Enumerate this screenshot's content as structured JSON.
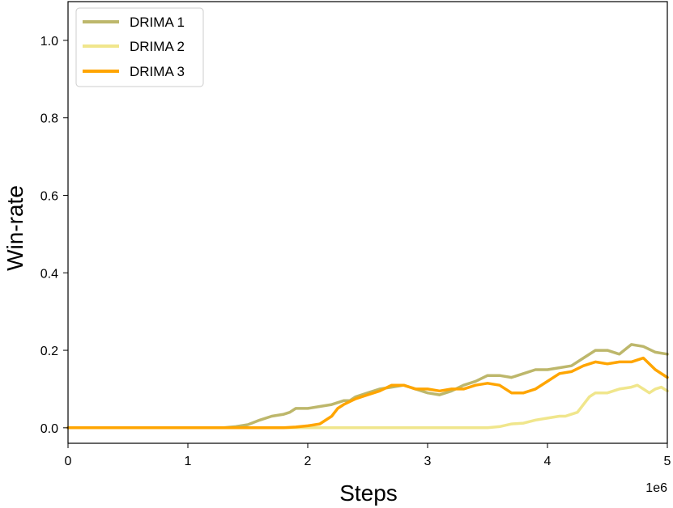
{
  "chart_data": {
    "type": "line",
    "xlabel": "Steps",
    "ylabel": "Win-rate",
    "x_offset_label": "1e6",
    "xlim": [
      0,
      5
    ],
    "ylim": [
      -0.04,
      1.1
    ],
    "x_ticks": [
      "0",
      "1",
      "2",
      "3",
      "4",
      "5"
    ],
    "y_ticks": [
      "0.0",
      "0.2",
      "0.4",
      "0.6",
      "0.8",
      "1.0"
    ],
    "grid": false,
    "legend_position": "top-left",
    "series": [
      {
        "name": "DRIMA 1",
        "color": "#bdb76b",
        "points": [
          [
            0,
            0
          ],
          [
            0.5,
            0
          ],
          [
            1.0,
            0
          ],
          [
            1.3,
            0
          ],
          [
            1.4,
            0.003
          ],
          [
            1.5,
            0.008
          ],
          [
            1.6,
            0.02
          ],
          [
            1.7,
            0.03
          ],
          [
            1.8,
            0.035
          ],
          [
            1.85,
            0.04
          ],
          [
            1.9,
            0.05
          ],
          [
            2.0,
            0.05
          ],
          [
            2.1,
            0.055
          ],
          [
            2.2,
            0.06
          ],
          [
            2.3,
            0.07
          ],
          [
            2.35,
            0.07
          ],
          [
            2.4,
            0.08
          ],
          [
            2.5,
            0.09
          ],
          [
            2.6,
            0.1
          ],
          [
            2.7,
            0.105
          ],
          [
            2.8,
            0.11
          ],
          [
            2.9,
            0.1
          ],
          [
            3.0,
            0.09
          ],
          [
            3.1,
            0.085
          ],
          [
            3.2,
            0.095
          ],
          [
            3.3,
            0.11
          ],
          [
            3.4,
            0.12
          ],
          [
            3.5,
            0.135
          ],
          [
            3.6,
            0.135
          ],
          [
            3.7,
            0.13
          ],
          [
            3.8,
            0.14
          ],
          [
            3.9,
            0.15
          ],
          [
            4.0,
            0.15
          ],
          [
            4.1,
            0.155
          ],
          [
            4.2,
            0.16
          ],
          [
            4.3,
            0.18
          ],
          [
            4.4,
            0.2
          ],
          [
            4.5,
            0.2
          ],
          [
            4.6,
            0.19
          ],
          [
            4.7,
            0.215
          ],
          [
            4.8,
            0.21
          ],
          [
            4.9,
            0.195
          ],
          [
            5.0,
            0.19
          ]
        ]
      },
      {
        "name": "DRIMA 2",
        "color": "#f0e68c",
        "points": [
          [
            0,
            0
          ],
          [
            1.0,
            0
          ],
          [
            2.0,
            0
          ],
          [
            2.5,
            0
          ],
          [
            3.0,
            0
          ],
          [
            3.3,
            0
          ],
          [
            3.5,
            0
          ],
          [
            3.6,
            0.003
          ],
          [
            3.7,
            0.01
          ],
          [
            3.8,
            0.012
          ],
          [
            3.9,
            0.02
          ],
          [
            4.0,
            0.025
          ],
          [
            4.1,
            0.03
          ],
          [
            4.15,
            0.03
          ],
          [
            4.2,
            0.035
          ],
          [
            4.25,
            0.04
          ],
          [
            4.3,
            0.06
          ],
          [
            4.35,
            0.08
          ],
          [
            4.4,
            0.09
          ],
          [
            4.5,
            0.09
          ],
          [
            4.6,
            0.1
          ],
          [
            4.7,
            0.105
          ],
          [
            4.75,
            0.11
          ],
          [
            4.8,
            0.1
          ],
          [
            4.85,
            0.09
          ],
          [
            4.9,
            0.1
          ],
          [
            4.95,
            0.105
          ],
          [
            5.0,
            0.095
          ]
        ]
      },
      {
        "name": "DRIMA 3",
        "color": "#ffa500",
        "points": [
          [
            0,
            0
          ],
          [
            1.0,
            0
          ],
          [
            1.5,
            0
          ],
          [
            1.8,
            0
          ],
          [
            1.9,
            0.002
          ],
          [
            2.0,
            0.005
          ],
          [
            2.1,
            0.01
          ],
          [
            2.2,
            0.03
          ],
          [
            2.25,
            0.05
          ],
          [
            2.3,
            0.06
          ],
          [
            2.4,
            0.075
          ],
          [
            2.5,
            0.085
          ],
          [
            2.6,
            0.095
          ],
          [
            2.7,
            0.11
          ],
          [
            2.8,
            0.11
          ],
          [
            2.9,
            0.1
          ],
          [
            3.0,
            0.1
          ],
          [
            3.1,
            0.095
          ],
          [
            3.2,
            0.1
          ],
          [
            3.3,
            0.1
          ],
          [
            3.4,
            0.11
          ],
          [
            3.5,
            0.115
          ],
          [
            3.6,
            0.11
          ],
          [
            3.7,
            0.09
          ],
          [
            3.8,
            0.09
          ],
          [
            3.9,
            0.1
          ],
          [
            4.0,
            0.12
          ],
          [
            4.1,
            0.14
          ],
          [
            4.2,
            0.145
          ],
          [
            4.3,
            0.16
          ],
          [
            4.4,
            0.17
          ],
          [
            4.5,
            0.165
          ],
          [
            4.6,
            0.17
          ],
          [
            4.7,
            0.17
          ],
          [
            4.8,
            0.18
          ],
          [
            4.9,
            0.15
          ],
          [
            5.0,
            0.13
          ]
        ]
      }
    ]
  }
}
